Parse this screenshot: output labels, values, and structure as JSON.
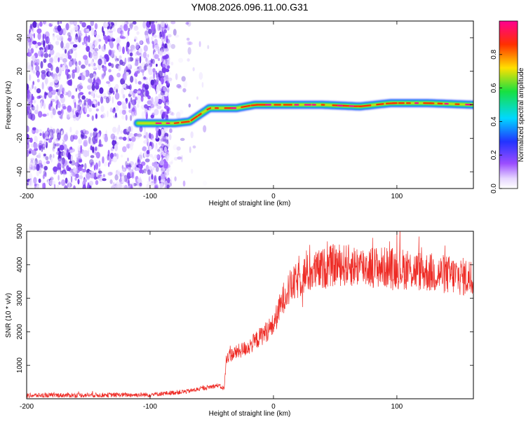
{
  "title": "YM08.2026.096.11.00.G31",
  "colors": {
    "snr_line": "#ee2a24",
    "noise": "#7a3cf0",
    "frame": "#000000"
  },
  "chart_data": [
    {
      "type": "heatmap",
      "name": "spectrogram",
      "xlabel": "Height of straight line (km)",
      "ylabel": "Frequency (Hz)",
      "xlim": [
        -200,
        162
      ],
      "ylim": [
        -50,
        50
      ],
      "xticks": [
        -200,
        -100,
        0,
        100
      ],
      "yticks": [
        -40,
        -20,
        0,
        20,
        40
      ],
      "ridge": [
        {
          "x": -110,
          "y": -11
        },
        {
          "x": -80,
          "y": -11
        },
        {
          "x": -68,
          "y": -10
        },
        {
          "x": -52,
          "y": -2
        },
        {
          "x": -30,
          "y": -2
        },
        {
          "x": -15,
          "y": 0
        },
        {
          "x": 40,
          "y": 0
        },
        {
          "x": 70,
          "y": -1
        },
        {
          "x": 95,
          "y": 1
        },
        {
          "x": 125,
          "y": 1
        },
        {
          "x": 162,
          "y": 0
        }
      ],
      "colorbar": {
        "label": "Normalized spectral amplitude",
        "ticks": [
          0.0,
          0.2,
          0.4,
          0.6,
          0.8
        ],
        "tick_labels": [
          "0.0",
          "0.2",
          "0.4",
          "0.6",
          "0.8"
        ],
        "colormap": [
          "#ffffff",
          "#9b4dff",
          "#2233ff",
          "#00d8ff",
          "#18e040",
          "#ffe000",
          "#ff3000",
          "#ff0090"
        ]
      }
    },
    {
      "type": "line",
      "name": "snr",
      "xlabel": "Height of straight line (km)",
      "ylabel": "SNR (10 * v/v)",
      "xlim": [
        -200,
        162
      ],
      "ylim": [
        0,
        5000
      ],
      "xticks": [
        -200,
        -100,
        0,
        100
      ],
      "yticks": [
        1000,
        2000,
        3000,
        4000,
        5000
      ],
      "trend": [
        {
          "x": -200,
          "y": 100
        },
        {
          "x": -100,
          "y": 120
        },
        {
          "x": -70,
          "y": 220
        },
        {
          "x": -45,
          "y": 400
        },
        {
          "x": -40,
          "y": 300
        },
        {
          "x": -38,
          "y": 1250
        },
        {
          "x": -20,
          "y": 1550
        },
        {
          "x": 0,
          "y": 2200
        },
        {
          "x": 10,
          "y": 3200
        },
        {
          "x": 25,
          "y": 3700
        },
        {
          "x": 50,
          "y": 4000
        },
        {
          "x": 100,
          "y": 3900
        },
        {
          "x": 162,
          "y": 3600
        }
      ]
    }
  ]
}
